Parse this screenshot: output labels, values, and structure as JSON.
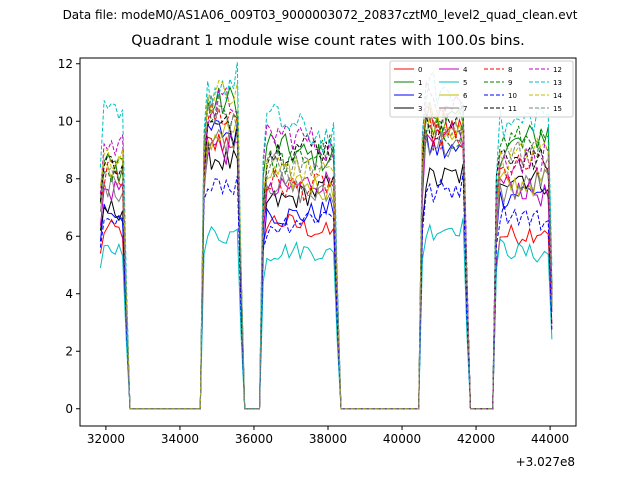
{
  "figure": {
    "suptitle": "Data file: modeM0/AS1A06_009T03_9000003072_20837cztM0_level2_quad_clean.evt"
  },
  "chart_data": {
    "type": "line",
    "title": "Quadrant 1 module wise count rates with 100.0s bins.",
    "xlabel": "",
    "ylabel": "",
    "x_offset_label": "+3.027e8",
    "xlim": [
      31300,
      44700
    ],
    "ylim": [
      -0.6,
      12.2
    ],
    "xticks": [
      32000,
      34000,
      36000,
      38000,
      40000,
      42000,
      44000
    ],
    "xtick_labels": [
      "32000",
      "34000",
      "36000",
      "38000",
      "40000",
      "42000",
      "44000"
    ],
    "yticks": [
      0,
      2,
      4,
      6,
      8,
      10,
      12
    ],
    "ytick_labels": [
      "0",
      "2",
      "4",
      "6",
      "8",
      "10",
      "12"
    ],
    "legend_position": "top-right",
    "segments": [
      [
        31850,
        32550
      ],
      [
        34600,
        35650
      ],
      [
        36250,
        38300
      ],
      [
        40550,
        41750
      ],
      [
        42500,
        44050
      ]
    ],
    "gaps": [
      [
        32550,
        34600
      ],
      [
        35650,
        36250
      ],
      [
        38300,
        40550
      ],
      [
        41750,
        42500
      ]
    ],
    "series": [
      {
        "name": "0",
        "color": "#ff0000",
        "dash": "solid",
        "levels": [
          6.0,
          9.3,
          6.3,
          9.7,
          6.3
        ]
      },
      {
        "name": "1",
        "color": "#008000",
        "dash": "solid",
        "levels": [
          8.4,
          10.3,
          9.1,
          10.1,
          9.3
        ]
      },
      {
        "name": "2",
        "color": "#0000ff",
        "dash": "solid",
        "levels": [
          7.1,
          9.3,
          7.0,
          9.3,
          7.3
        ]
      },
      {
        "name": "3",
        "color": "#000000",
        "dash": "solid",
        "levels": [
          7.2,
          8.6,
          7.5,
          8.3,
          7.8
        ]
      },
      {
        "name": "4",
        "color": "#bf00bf",
        "dash": "solid",
        "levels": [
          7.7,
          9.3,
          7.6,
          9.3,
          7.6
        ]
      },
      {
        "name": "5",
        "color": "#00bfbf",
        "dash": "solid",
        "levels": [
          5.4,
          6.3,
          5.3,
          6.1,
          5.6
        ]
      },
      {
        "name": "6",
        "color": "#bfbf00",
        "dash": "solid",
        "levels": [
          8.1,
          9.7,
          7.8,
          9.4,
          8.1
        ]
      },
      {
        "name": "7",
        "color": "#808080",
        "dash": "solid",
        "levels": [
          7.6,
          9.2,
          7.7,
          9.1,
          7.8
        ]
      },
      {
        "name": "8",
        "color": "#ff0000",
        "dash": "dashed",
        "levels": [
          8.3,
          9.8,
          8.0,
          9.7,
          8.2
        ]
      },
      {
        "name": "9",
        "color": "#008000",
        "dash": "dashed",
        "levels": [
          8.6,
          10.2,
          8.9,
          9.9,
          9.0
        ]
      },
      {
        "name": "10",
        "color": "#0000ff",
        "dash": "dashed",
        "levels": [
          6.5,
          8.1,
          6.5,
          7.7,
          6.6
        ]
      },
      {
        "name": "11",
        "color": "#000000",
        "dash": "dashed",
        "levels": [
          8.4,
          10.1,
          8.8,
          9.8,
          8.9
        ]
      },
      {
        "name": "12",
        "color": "#bf00bf",
        "dash": "dashed",
        "levels": [
          8.8,
          10.8,
          9.2,
          10.5,
          9.0
        ]
      },
      {
        "name": "13",
        "color": "#00bfbf",
        "dash": "dashed",
        "levels": [
          9.8,
          11.1,
          9.8,
          10.8,
          10.2
        ]
      },
      {
        "name": "14",
        "color": "#bfbf00",
        "dash": "dashed",
        "levels": [
          8.9,
          10.5,
          8.6,
          10.3,
          8.7
        ]
      },
      {
        "name": "15",
        "color": "#808080",
        "dash": "dashed",
        "levels": [
          8.5,
          10.1,
          8.7,
          9.9,
          8.6
        ]
      }
    ]
  }
}
